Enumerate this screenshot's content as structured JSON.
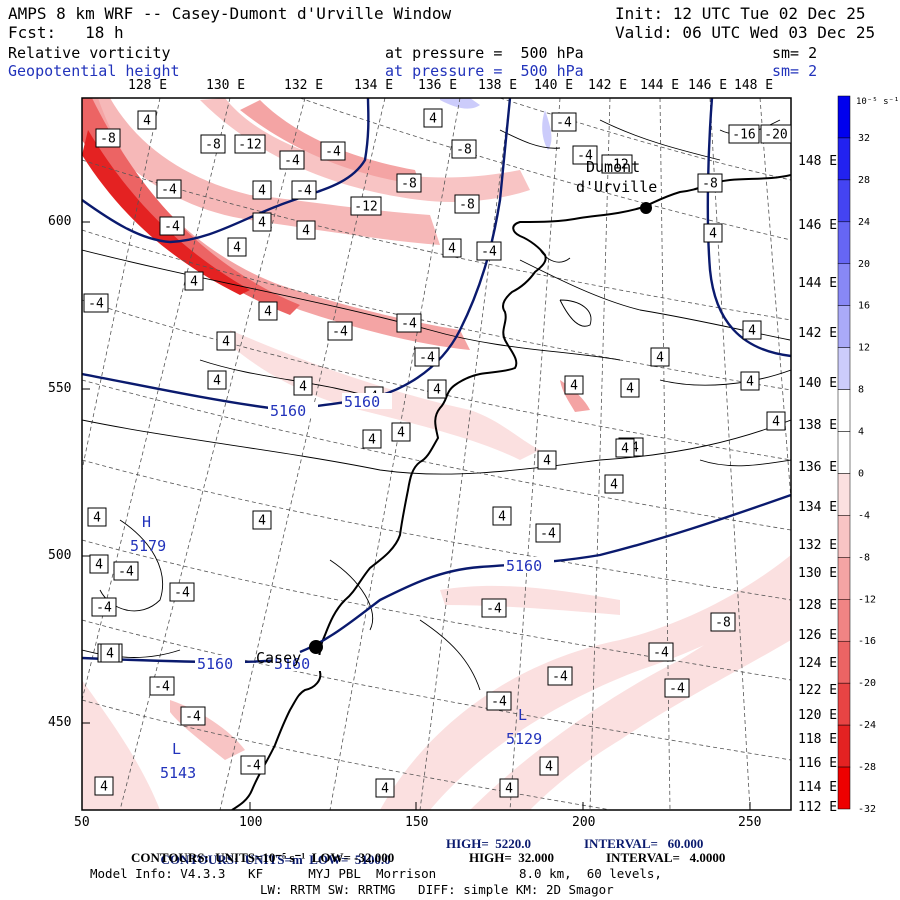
{
  "header": {
    "title": "AMPS 8 km WRF -- Casey-Dumont d'Urville Window",
    "init": "Init: 12 UTC Tue 02 Dec 25",
    "fcst": "Fcst:   18 h",
    "valid": "Valid: 06 UTC Wed 03 Dec 25",
    "field1": "Relative vorticity",
    "field1_pressure": "at pressure =  500 hPa",
    "field1_sm": "sm= 2",
    "field2": "Geopotential height",
    "field2_pressure": "at pressure =  500 hPa",
    "field2_sm": "sm= 2"
  },
  "axes": {
    "x_ticks": [
      "50",
      "100",
      "150",
      "200",
      "250"
    ],
    "y_ticks": [
      "600",
      "550",
      "500",
      "450"
    ],
    "lon_labels": [
      "128 E",
      "130 E",
      "132 E",
      "134 E",
      "136 E",
      "138 E",
      "140 E",
      "142 E",
      "144 E",
      "146 E",
      "148 E"
    ],
    "lon_right": [
      "148 E",
      "146 E",
      "144 E",
      "142 E",
      "140 E",
      "138 E",
      "136 E",
      "134 E",
      "132 E",
      "130 E",
      "128 E",
      "126 E",
      "124 E",
      "122 E",
      "120 E",
      "118 E",
      "116 E",
      "114 E",
      "112 E"
    ]
  },
  "colorbar": {
    "unit": "10⁻⁵ s⁻¹",
    "labels": [
      "32",
      "28",
      "24",
      "20",
      "16",
      "12",
      "8",
      "4",
      "0",
      "-4",
      "-8",
      "-12",
      "-16",
      "-20",
      "-24",
      "-28",
      "-32"
    ],
    "colors": [
      "#0000ee",
      "#2222f0",
      "#4444f2",
      "#6666f4",
      "#8888f6",
      "#aaaaf8",
      "#ccccfb",
      "#ffffff",
      "#ffffff",
      "#fbe0e0",
      "#f8c4c4",
      "#f4a4a4",
      "#f08484",
      "#ec6464",
      "#e84444",
      "#e42222",
      "#ee0000"
    ]
  },
  "map": {
    "stations": [
      {
        "name": "Dumont",
        "name2": "d'Urville"
      },
      {
        "name": "Casey"
      }
    ],
    "height_contours": [
      "5160",
      "5160",
      "5160",
      "5160",
      "5160"
    ],
    "highs": [
      {
        "label": "H",
        "value": "5179"
      }
    ],
    "lows": [
      {
        "label": "L",
        "value": "5129"
      },
      {
        "label": "L",
        "value": "5143"
      }
    ],
    "vort_labels": [
      "-8",
      "4",
      "-8",
      "-12",
      "-4",
      "-4",
      "-8",
      "-4",
      "-4",
      "-8",
      "-12",
      "-8",
      "-4",
      "4",
      "-4",
      "-4",
      "4",
      "4",
      "4",
      "4",
      "4",
      "-4",
      "-16",
      "-20",
      "-12",
      "-8",
      "4",
      "-4",
      "4",
      "4",
      "-4",
      "-4",
      "4",
      "-4",
      "4",
      "4",
      "4",
      "4",
      "4",
      "4",
      "4",
      "4",
      "4",
      "4",
      "4",
      "-4",
      "4",
      "4",
      "4",
      "4",
      "-4",
      "4",
      "-4",
      "-4",
      "-4",
      "-4",
      "-8",
      "-4",
      "-4",
      "-4",
      "-4",
      "-4",
      "-4",
      "-4",
      "-4",
      "4",
      "4",
      "4",
      "4",
      "4",
      "4",
      "4",
      "4"
    ]
  },
  "footer": {
    "line1_a": "CONTOURS:  UNITS=m  LOW=  5100.0",
    "line1_b": "HIGH=  5220.0",
    "line1_c": "INTERVAL=   60.000",
    "line2_a": "CONTOURS:  UNITS=10⁻⁵ s⁻¹  LOW= -32.000",
    "line2_b": "HIGH=  32.000",
    "line2_c": "INTERVAL=   4.0000",
    "line3": "Model Info: V4.3.3   KF      MYJ PBL  Morrison           8.0 km,  60 levels,",
    "line4": "LW: RRTM SW: RRTMG   DIFF: simple KM: 2D Smagor"
  }
}
